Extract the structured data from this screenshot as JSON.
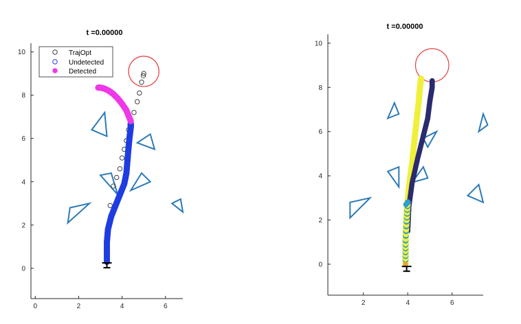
{
  "colors": {
    "trajopt": "#404040",
    "undetected": "#1f3ee0",
    "detected": "#ee3ae8",
    "obstacle": "#2a7ab8",
    "goal": "#e04040",
    "yellow_path": "#f0f03a",
    "navy_path": "#2b2b6e",
    "teal_pts": "#2f9fc8",
    "robot": "#000000"
  },
  "chart_data": [
    {
      "type": "scatter",
      "title": "t =0.00000",
      "xlim": [
        -0.2,
        6.8
      ],
      "ylim": [
        -1.4,
        10.4
      ],
      "xticks": [
        0,
        2,
        4,
        6
      ],
      "yticks": [
        0,
        2,
        4,
        6,
        8,
        10
      ],
      "legend": {
        "position": "top-left",
        "entries": [
          "TrajOpt",
          "Undetected",
          "Detected"
        ]
      },
      "goal": {
        "x": 5.0,
        "y": 9.1,
        "r": 0.7
      },
      "robot": {
        "x": 3.3,
        "y": 0.25
      },
      "series": [
        {
          "name": "TrajOpt",
          "marker": "open-circle",
          "x": [
            3.3,
            3.35,
            3.45,
            3.6,
            3.75,
            3.9,
            4.0,
            4.1,
            4.2,
            4.3,
            4.4,
            4.55,
            4.7,
            4.8,
            4.9,
            4.98,
            5.0
          ],
          "y": [
            0.6,
            1.8,
            2.9,
            3.8,
            4.2,
            4.6,
            5.1,
            5.5,
            5.9,
            6.4,
            6.8,
            7.2,
            7.7,
            8.1,
            8.6,
            8.9,
            9.0
          ]
        },
        {
          "name": "Undetected",
          "marker": "dense-path",
          "x": [
            3.3,
            3.3,
            3.35,
            3.5,
            3.7,
            3.9,
            4.1,
            4.2,
            4.25,
            4.3,
            4.35,
            4.4,
            4.4
          ],
          "y": [
            0.3,
            1.2,
            1.8,
            2.4,
            2.9,
            3.4,
            3.9,
            4.4,
            5.0,
            5.6,
            6.1,
            6.5,
            6.7
          ]
        },
        {
          "name": "Detected",
          "marker": "dense-path",
          "x": [
            4.4,
            4.2,
            4.0,
            3.8,
            3.6,
            3.4,
            3.2,
            3.0,
            2.9
          ],
          "y": [
            6.8,
            7.3,
            7.6,
            7.85,
            8.05,
            8.2,
            8.3,
            8.35,
            8.35
          ]
        }
      ],
      "obstacles": [
        [
          [
            2.6,
            6.4
          ],
          [
            3.3,
            6.1
          ],
          [
            3.2,
            7.2
          ]
        ],
        [
          [
            4.7,
            5.8
          ],
          [
            5.5,
            5.5
          ],
          [
            5.3,
            6.2
          ]
        ],
        [
          [
            3.0,
            4.3
          ],
          [
            3.5,
            4.4
          ],
          [
            3.8,
            3.4
          ]
        ],
        [
          [
            4.4,
            3.6
          ],
          [
            4.9,
            4.4
          ],
          [
            5.3,
            4.0
          ]
        ],
        [
          [
            1.5,
            2.1
          ],
          [
            1.6,
            2.8
          ],
          [
            2.5,
            3.0
          ]
        ],
        [
          [
            6.3,
            3.0
          ],
          [
            6.7,
            3.2
          ],
          [
            6.8,
            2.6
          ]
        ]
      ]
    },
    {
      "type": "scatter",
      "title": "t =0.00000",
      "xlim": [
        0.4,
        7.4
      ],
      "ylim": [
        -1.4,
        10.4
      ],
      "xticks": [
        2,
        4,
        6
      ],
      "yticks": [
        0,
        2,
        4,
        6,
        8,
        10
      ],
      "goal": {
        "x": 5.1,
        "y": 9.0,
        "r": 0.75
      },
      "robot": {
        "x": 3.95,
        "y": -0.1
      },
      "series": [
        {
          "marker": "dense-path",
          "x": [
            3.9,
            3.9,
            3.95,
            4.05,
            4.2,
            4.3,
            4.4,
            4.5,
            4.55,
            4.6
          ],
          "y": [
            0.0,
            1.2,
            2.4,
            3.5,
            4.6,
            5.6,
            6.5,
            7.4,
            8.0,
            8.4
          ]
        },
        {
          "marker": "dense-path",
          "x": [
            4.0,
            4.05,
            4.2,
            4.45,
            4.7,
            4.9,
            5.0,
            5.1,
            5.1
          ],
          "y": [
            1.5,
            2.6,
            3.7,
            4.8,
            5.8,
            6.6,
            7.4,
            8.0,
            8.3
          ]
        },
        {
          "marker": "dense-path",
          "x": [
            3.9,
            3.9,
            3.95,
            4.0
          ],
          "y": [
            0.2,
            1.0,
            2.0,
            2.8
          ]
        }
      ],
      "obstacles": [
        [
          [
            3.1,
            6.6
          ],
          [
            3.6,
            6.8
          ],
          [
            3.4,
            7.3
          ]
        ],
        [
          [
            4.9,
            5.3
          ],
          [
            5.3,
            6.0
          ],
          [
            4.7,
            5.7
          ]
        ],
        [
          [
            3.1,
            4.2
          ],
          [
            3.6,
            3.5
          ],
          [
            3.6,
            4.4
          ]
        ],
        [
          [
            4.2,
            3.7
          ],
          [
            4.7,
            4.4
          ],
          [
            4.9,
            3.9
          ]
        ],
        [
          [
            1.4,
            2.1
          ],
          [
            1.4,
            2.8
          ],
          [
            2.3,
            3.0
          ]
        ],
        [
          [
            7.2,
            6.0
          ],
          [
            7.4,
            6.8
          ],
          [
            7.6,
            6.3
          ]
        ],
        [
          [
            6.7,
            3.1
          ],
          [
            7.2,
            3.6
          ],
          [
            7.4,
            2.8
          ]
        ]
      ]
    }
  ]
}
